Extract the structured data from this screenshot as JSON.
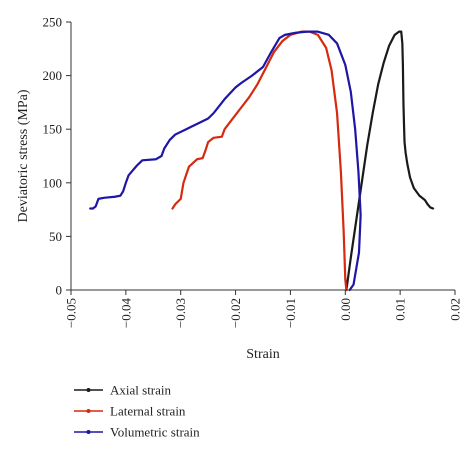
{
  "chart_data": {
    "type": "line",
    "xlabel": "Strain",
    "ylabel": "Deviatoric stress (MPa)",
    "xlim": [
      -0.05,
      0.02
    ],
    "ylim": [
      0,
      250
    ],
    "xticks": [
      "−0.05",
      "−0.04",
      "−0.03",
      "−0.02",
      "−0.01",
      "0.00",
      "0.01",
      "0.02"
    ],
    "xtick_values": [
      -0.05,
      -0.04,
      -0.03,
      -0.02,
      -0.01,
      0.0,
      0.01,
      0.02
    ],
    "yticks": [
      "0",
      "50",
      "100",
      "150",
      "200",
      "250"
    ],
    "ytick_values": [
      0,
      50,
      100,
      150,
      200,
      250
    ],
    "grid": false,
    "legend_position": "bottom-left",
    "series": [
      {
        "name": "Axial strain",
        "color": "#1a1a1a",
        "points": [
          [
            0.0002,
            0
          ],
          [
            0.001,
            30
          ],
          [
            0.002,
            65
          ],
          [
            0.003,
            100
          ],
          [
            0.004,
            135
          ],
          [
            0.005,
            165
          ],
          [
            0.006,
            192
          ],
          [
            0.007,
            212
          ],
          [
            0.008,
            228
          ],
          [
            0.009,
            238
          ],
          [
            0.0098,
            241
          ],
          [
            0.0102,
            241
          ],
          [
            0.0104,
            230
          ],
          [
            0.0105,
            210
          ],
          [
            0.0106,
            175
          ],
          [
            0.0107,
            155
          ],
          [
            0.0108,
            138
          ],
          [
            0.011,
            128
          ],
          [
            0.0113,
            118
          ],
          [
            0.0118,
            105
          ],
          [
            0.0125,
            95
          ],
          [
            0.0135,
            88
          ],
          [
            0.0145,
            84
          ],
          [
            0.015,
            80
          ],
          [
            0.0155,
            77
          ],
          [
            0.016,
            76
          ]
        ]
      },
      {
        "name": "Laternal strain",
        "color": "#d62a0e",
        "points": [
          [
            -0.0315,
            76
          ],
          [
            -0.031,
            80
          ],
          [
            -0.03,
            85
          ],
          [
            -0.0295,
            100
          ],
          [
            -0.0285,
            115
          ],
          [
            -0.027,
            122
          ],
          [
            -0.026,
            123
          ],
          [
            -0.0255,
            130
          ],
          [
            -0.025,
            138
          ],
          [
            -0.0245,
            140
          ],
          [
            -0.024,
            142
          ],
          [
            -0.0225,
            143
          ],
          [
            -0.022,
            150
          ],
          [
            -0.0205,
            160
          ],
          [
            -0.019,
            170
          ],
          [
            -0.0175,
            180
          ],
          [
            -0.016,
            192
          ],
          [
            -0.0145,
            207
          ],
          [
            -0.013,
            222
          ],
          [
            -0.0115,
            232
          ],
          [
            -0.01,
            238
          ],
          [
            -0.008,
            241
          ],
          [
            -0.0065,
            241
          ],
          [
            -0.005,
            238
          ],
          [
            -0.0035,
            226
          ],
          [
            -0.0025,
            205
          ],
          [
            -0.0015,
            165
          ],
          [
            -0.0008,
            110
          ],
          [
            -0.0003,
            55
          ],
          [
            0.0,
            10
          ],
          [
            0.0002,
            0
          ]
        ]
      },
      {
        "name": "Volumetric strain",
        "color": "#1f15a6",
        "points": [
          [
            -0.0465,
            76
          ],
          [
            -0.046,
            76
          ],
          [
            -0.0455,
            78
          ],
          [
            -0.045,
            85
          ],
          [
            -0.044,
            86
          ],
          [
            -0.042,
            87
          ],
          [
            -0.041,
            88
          ],
          [
            -0.0405,
            92
          ],
          [
            -0.04,
            100
          ],
          [
            -0.0395,
            107
          ],
          [
            -0.039,
            110
          ],
          [
            -0.038,
            116
          ],
          [
            -0.037,
            121
          ],
          [
            -0.0345,
            122
          ],
          [
            -0.0335,
            125
          ],
          [
            -0.033,
            132
          ],
          [
            -0.032,
            140
          ],
          [
            -0.031,
            145
          ],
          [
            -0.029,
            150
          ],
          [
            -0.027,
            155
          ],
          [
            -0.025,
            160
          ],
          [
            -0.024,
            165
          ],
          [
            -0.022,
            178
          ],
          [
            -0.02,
            189
          ],
          [
            -0.019,
            193
          ],
          [
            -0.017,
            200
          ],
          [
            -0.015,
            208
          ],
          [
            -0.0135,
            222
          ],
          [
            -0.012,
            235
          ],
          [
            -0.011,
            238
          ],
          [
            -0.009,
            240
          ],
          [
            -0.007,
            241
          ],
          [
            -0.005,
            241
          ],
          [
            -0.003,
            238
          ],
          [
            -0.0015,
            230
          ],
          [
            0.0,
            210
          ],
          [
            0.001,
            185
          ],
          [
            0.0018,
            150
          ],
          [
            0.0024,
            110
          ],
          [
            0.0028,
            70
          ],
          [
            0.0025,
            35
          ],
          [
            0.0015,
            5
          ],
          [
            0.0008,
            0
          ]
        ]
      }
    ]
  }
}
